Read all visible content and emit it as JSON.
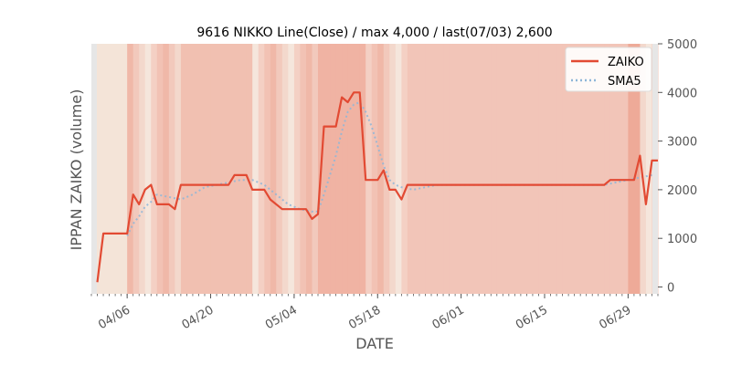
{
  "chart_data": {
    "type": "line",
    "title": "9616 NIKKO Line(Close) / max 4,000 / last(07/03) 2,600",
    "xlabel": "DATE",
    "ylabel": "IPPAN ZAIKO (volume)",
    "ylim": [
      0,
      5000
    ],
    "yticks": [
      "0",
      "1000",
      "2000",
      "3000",
      "4000",
      "5000"
    ],
    "yaxis_side": "right",
    "xticks": [
      {
        "label": "04/06",
        "date": "2023-04-06"
      },
      {
        "label": "04/20",
        "date": "2023-04-20"
      },
      {
        "label": "05/04",
        "date": "2023-05-04"
      },
      {
        "label": "05/18",
        "date": "2023-05-18"
      },
      {
        "label": "06/01",
        "date": "2023-06-01"
      },
      {
        "label": "06/15",
        "date": "2023-06-15"
      },
      {
        "label": "06/29",
        "date": "2023-06-29"
      }
    ],
    "xlim": [
      "2023-03-31",
      "2023-07-04"
    ],
    "legend_position": "top-right",
    "grid": false,
    "background_bands": true,
    "series": [
      {
        "name": "ZAIKO",
        "style": "solid",
        "color": "#e24a33",
        "points": [
          [
            "2023-04-01",
            100
          ],
          [
            "2023-04-02",
            1100
          ],
          [
            "2023-04-03",
            1100
          ],
          [
            "2023-04-04",
            1100
          ],
          [
            "2023-04-05",
            1100
          ],
          [
            "2023-04-06",
            1100
          ],
          [
            "2023-04-07",
            1900
          ],
          [
            "2023-04-08",
            1700
          ],
          [
            "2023-04-09",
            2000
          ],
          [
            "2023-04-10",
            2100
          ],
          [
            "2023-04-11",
            1700
          ],
          [
            "2023-04-12",
            1700
          ],
          [
            "2023-04-13",
            1700
          ],
          [
            "2023-04-14",
            1600
          ],
          [
            "2023-04-15",
            2100
          ],
          [
            "2023-04-21",
            2100
          ],
          [
            "2023-04-23",
            2100
          ],
          [
            "2023-04-24",
            2300
          ],
          [
            "2023-04-26",
            2300
          ],
          [
            "2023-04-27",
            2000
          ],
          [
            "2023-04-29",
            2000
          ],
          [
            "2023-04-30",
            1800
          ],
          [
            "2023-05-02",
            1600
          ],
          [
            "2023-05-06",
            1600
          ],
          [
            "2023-05-07",
            1400
          ],
          [
            "2023-05-08",
            1500
          ],
          [
            "2023-05-09",
            3300
          ],
          [
            "2023-05-11",
            3300
          ],
          [
            "2023-05-12",
            3900
          ],
          [
            "2023-05-13",
            3800
          ],
          [
            "2023-05-14",
            4000
          ],
          [
            "2023-05-15",
            4000
          ],
          [
            "2023-05-16",
            2200
          ],
          [
            "2023-05-18",
            2200
          ],
          [
            "2023-05-19",
            2400
          ],
          [
            "2023-05-20",
            2000
          ],
          [
            "2023-05-21",
            2000
          ],
          [
            "2023-05-22",
            1800
          ],
          [
            "2023-05-23",
            2100
          ],
          [
            "2023-06-25",
            2100
          ],
          [
            "2023-06-26",
            2200
          ],
          [
            "2023-06-30",
            2200
          ],
          [
            "2023-07-01",
            2700
          ],
          [
            "2023-07-02",
            1700
          ],
          [
            "2023-07-03",
            2600
          ],
          [
            "2023-07-04",
            2600
          ]
        ]
      },
      {
        "name": "SMA5",
        "style": "dotted",
        "color": "#8eb6d8",
        "points": [
          [
            "2023-04-06",
            1050
          ],
          [
            "2023-04-07",
            1300
          ],
          [
            "2023-04-08",
            1450
          ],
          [
            "2023-04-09",
            1650
          ],
          [
            "2023-04-10",
            1750
          ],
          [
            "2023-04-11",
            1900
          ],
          [
            "2023-04-13",
            1850
          ],
          [
            "2023-04-15",
            1800
          ],
          [
            "2023-04-17",
            1900
          ],
          [
            "2023-04-19",
            2050
          ],
          [
            "2023-04-21",
            2100
          ],
          [
            "2023-04-23",
            2150
          ],
          [
            "2023-04-25",
            2200
          ],
          [
            "2023-04-27",
            2200
          ],
          [
            "2023-04-29",
            2100
          ],
          [
            "2023-05-01",
            1900
          ],
          [
            "2023-05-03",
            1700
          ],
          [
            "2023-05-05",
            1600
          ],
          [
            "2023-05-07",
            1550
          ],
          [
            "2023-05-08",
            1550
          ],
          [
            "2023-05-09",
            1900
          ],
          [
            "2023-05-10",
            2300
          ],
          [
            "2023-05-11",
            2700
          ],
          [
            "2023-05-12",
            3200
          ],
          [
            "2023-05-13",
            3600
          ],
          [
            "2023-05-14",
            3750
          ],
          [
            "2023-05-15",
            3800
          ],
          [
            "2023-05-16",
            3600
          ],
          [
            "2023-05-17",
            3300
          ],
          [
            "2023-05-18",
            2900
          ],
          [
            "2023-05-19",
            2500
          ],
          [
            "2023-05-20",
            2200
          ],
          [
            "2023-05-21",
            2100
          ],
          [
            "2023-05-22",
            2050
          ],
          [
            "2023-05-24",
            2000
          ],
          [
            "2023-05-26",
            2050
          ],
          [
            "2023-05-28",
            2100
          ],
          [
            "2023-06-25",
            2100
          ],
          [
            "2023-06-27",
            2150
          ],
          [
            "2023-06-29",
            2200
          ],
          [
            "2023-07-01",
            2250
          ],
          [
            "2023-07-03",
            2300
          ]
        ]
      }
    ]
  }
}
